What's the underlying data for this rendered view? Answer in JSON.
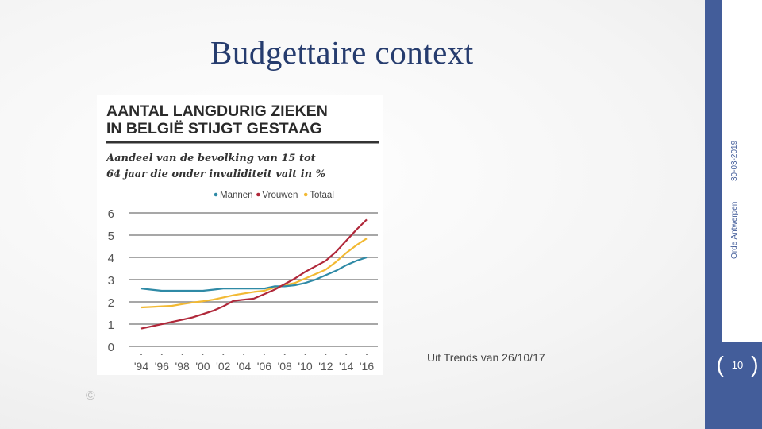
{
  "slide": {
    "title": "Budgettaire context",
    "caption": "Uit Trends van 26/10/17",
    "date": "30-03-2019",
    "organization": "Orde Antwerpen",
    "page_number": "10",
    "copyright": "©"
  },
  "colors": {
    "accent": "#435d9a",
    "title": "#263c6e",
    "mannen": "#2f8aa6",
    "vrouwen": "#b0283a",
    "totaal": "#f2b933"
  },
  "chart_data": {
    "type": "line",
    "title": "AANTAL LANGDURIG ZIEKEN IN BELGIË STIJGT GESTAAG",
    "title_lines": [
      "AANTAL LANGDURIG ZIEKEN",
      "IN BELGIË STIJGT GESTAAG"
    ],
    "subtitle": "Aandeel van de bevolking van 15 tot 64 jaar die onder invaliditeit valt in %",
    "subtitle_lines": [
      "Aandeel van de bevolking van 15 tot",
      "64 jaar die onder invaliditeit valt in %"
    ],
    "legend_position": "top-right",
    "x": [
      1994,
      1995,
      1996,
      1997,
      1998,
      1999,
      2000,
      2001,
      2002,
      2003,
      2004,
      2005,
      2006,
      2007,
      2008,
      2009,
      2010,
      2011,
      2012,
      2013,
      2014,
      2015,
      2016
    ],
    "x_tick_labels": [
      "'94",
      "'96",
      "'98",
      "'00",
      "'02",
      "'04",
      "'06",
      "'08",
      "'10",
      "'12",
      "'14",
      "'16"
    ],
    "y_ticks": [
      "0",
      "1",
      "2",
      "3",
      "4",
      "5",
      "6"
    ],
    "ylim": [
      0,
      6
    ],
    "grid": true,
    "series": [
      {
        "name": "Mannen",
        "color": "#2f8aa6",
        "values": [
          2.6,
          2.55,
          2.5,
          2.5,
          2.5,
          2.5,
          2.5,
          2.55,
          2.6,
          2.6,
          2.6,
          2.6,
          2.6,
          2.7,
          2.7,
          2.75,
          2.85,
          3.0,
          3.2,
          3.4,
          3.65,
          3.85,
          4.0
        ]
      },
      {
        "name": "Vrouwen",
        "color": "#b0283a",
        "values": [
          0.8,
          0.9,
          1.0,
          1.1,
          1.2,
          1.3,
          1.45,
          1.6,
          1.8,
          2.05,
          2.1,
          2.15,
          2.35,
          2.55,
          2.8,
          3.05,
          3.35,
          3.6,
          3.85,
          4.25,
          4.75,
          5.25,
          5.7
        ]
      },
      {
        "name": "Totaal",
        "color": "#f2b933",
        "values": [
          1.75,
          1.77,
          1.8,
          1.82,
          1.9,
          1.97,
          2.03,
          2.1,
          2.2,
          2.3,
          2.38,
          2.45,
          2.5,
          2.65,
          2.75,
          2.85,
          3.05,
          3.25,
          3.45,
          3.8,
          4.2,
          4.55,
          4.85
        ]
      }
    ]
  }
}
